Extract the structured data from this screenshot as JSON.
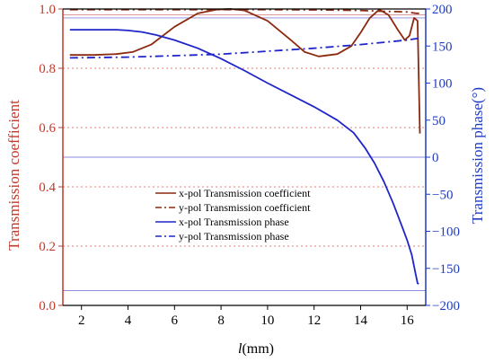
{
  "chart_data": {
    "type": "line",
    "xlabel_italic": "l",
    "xlabel_rest": "(mm)",
    "ylabel_left": "Transmission coefficient",
    "ylabel_right": "Transmission phase(°)",
    "x_range": [
      1.2,
      16.8
    ],
    "x_ticks": [
      2,
      4,
      6,
      8,
      10,
      12,
      14,
      16
    ],
    "y_left_range": [
      0.0,
      1.0
    ],
    "y_left_ticks": [
      "0.0",
      "0.2",
      "0.4",
      "0.6",
      "0.8",
      "1.0"
    ],
    "y_left_tick_values": [
      0,
      0.2,
      0.4,
      0.6,
      0.8,
      1.0
    ],
    "y_right_range": [
      -200,
      200
    ],
    "y_right_ticks": [
      -200,
      -150,
      -100,
      -50,
      0,
      50,
      100,
      150,
      200
    ],
    "grid": "dotted horizontal at left-axis ticks",
    "legend_position": "center-left",
    "reference_lines": {
      "left_axis": [
        0.98,
        0.97
      ],
      "right_axis": [
        0,
        -180
      ]
    },
    "series": [
      {
        "name": "x-pol Transmission coefficient",
        "axis": "left",
        "color": "#8b2a0f",
        "dash": "solid",
        "x": [
          1.5,
          2.5,
          3.5,
          4.2,
          5.0,
          6.0,
          7.0,
          7.8,
          8.4,
          9.0,
          10.0,
          11.0,
          11.6,
          12.2,
          13.0,
          13.6,
          14.0,
          14.4,
          14.8,
          15.2,
          15.6,
          15.9,
          16.1,
          16.3,
          16.45,
          16.55
        ],
        "values": [
          0.845,
          0.845,
          0.848,
          0.855,
          0.88,
          0.94,
          0.985,
          0.998,
          1.0,
          0.995,
          0.96,
          0.895,
          0.855,
          0.84,
          0.848,
          0.875,
          0.92,
          0.97,
          0.998,
          0.98,
          0.93,
          0.895,
          0.91,
          0.97,
          0.96,
          0.58
        ]
      },
      {
        "name": "y-pol Transmission coefficient",
        "axis": "left",
        "color": "#8b2a0f",
        "dash": "dashdot",
        "x": [
          1.5,
          4.0,
          6.0,
          8.0,
          10.0,
          12.0,
          14.0,
          15.0,
          16.0,
          16.4,
          16.6
        ],
        "values": [
          0.998,
          0.998,
          0.998,
          0.998,
          0.998,
          0.997,
          0.995,
          0.992,
          0.99,
          0.985,
          0.985
        ]
      },
      {
        "name": "x-pol Transmission phase",
        "axis": "right",
        "color": "#1f25c8",
        "dash": "solid",
        "x": [
          1.5,
          2.5,
          3.5,
          4.0,
          4.6,
          5.2,
          6.0,
          7.0,
          8.0,
          9.0,
          10.0,
          11.0,
          12.0,
          13.0,
          13.7,
          14.2,
          14.6,
          15.0,
          15.4,
          15.8,
          16.0,
          16.2,
          16.35,
          16.45,
          16.5
        ],
        "values": [
          172,
          172,
          172,
          171,
          169,
          165,
          158,
          147,
          133,
          117,
          100,
          84,
          68,
          50,
          33,
          12,
          -8,
          -33,
          -62,
          -95,
          -112,
          -132,
          -155,
          -170,
          -171
        ]
      },
      {
        "name": "y-pol Transmission phase",
        "axis": "right",
        "color": "#1f25c8",
        "dash": "dashdot",
        "x": [
          1.5,
          4.0,
          6.0,
          8.0,
          10.0,
          12.0,
          14.0,
          15.0,
          16.0,
          16.6
        ],
        "values": [
          134,
          135,
          137,
          139,
          143,
          147,
          152,
          155,
          158,
          161
        ]
      }
    ]
  }
}
